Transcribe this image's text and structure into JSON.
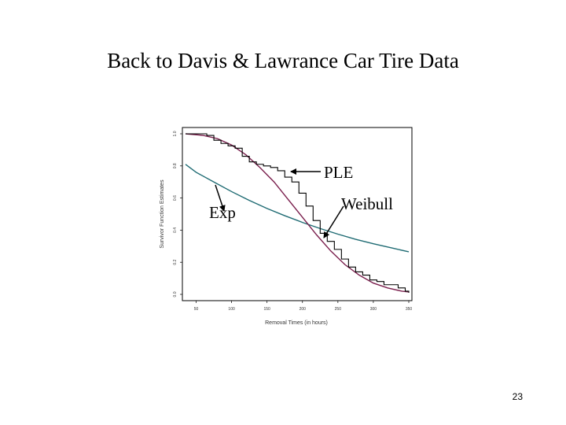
{
  "slide": {
    "title": "Back to Davis & Lawrance Car Tire Data",
    "page_number": "23"
  },
  "annotations": {
    "exp": "Exp",
    "ple": "PLE",
    "weibull": "Weibull"
  },
  "colors": {
    "exp_curve": "#1f6b73",
    "weibull_curve": "#7a1f4d",
    "ple_curve": "#000000",
    "frame": "#000000"
  },
  "chart_data": {
    "type": "line",
    "title": "",
    "xlabel": "Removal Times (in hours)",
    "ylabel": "Survivor Function Estimates",
    "xlim": [
      35,
      350
    ],
    "ylim": [
      0,
      1.0
    ],
    "x_ticks": [
      "50",
      "100",
      "150",
      "200",
      "250",
      "300",
      "350"
    ],
    "y_ticks": [
      "0.0",
      "0.2",
      "0.4",
      "0.6",
      "0.8",
      "1.0"
    ],
    "series": [
      {
        "name": "Exp",
        "x": [
          35,
          50,
          75,
          100,
          125,
          150,
          175,
          200,
          225,
          250,
          275,
          300,
          325,
          350
        ],
        "y": [
          0.81,
          0.76,
          0.7,
          0.64,
          0.585,
          0.535,
          0.49,
          0.448,
          0.41,
          0.375,
          0.343,
          0.315,
          0.29,
          0.265
        ]
      },
      {
        "name": "Weibull",
        "x": [
          35,
          60,
          80,
          100,
          120,
          140,
          160,
          180,
          200,
          220,
          240,
          260,
          280,
          300,
          320,
          340,
          350
        ],
        "y": [
          1.0,
          0.99,
          0.97,
          0.93,
          0.87,
          0.79,
          0.7,
          0.59,
          0.48,
          0.37,
          0.27,
          0.185,
          0.12,
          0.07,
          0.04,
          0.02,
          0.015
        ]
      },
      {
        "name": "PLE",
        "x": [
          35,
          65,
          75,
          85,
          95,
          105,
          115,
          125,
          135,
          145,
          155,
          165,
          175,
          185,
          195,
          205,
          215,
          225,
          235,
          245,
          255,
          265,
          275,
          285,
          295,
          305,
          315,
          325,
          335,
          345,
          350
        ],
        "y": [
          1.0,
          0.99,
          0.96,
          0.94,
          0.925,
          0.91,
          0.86,
          0.825,
          0.81,
          0.8,
          0.79,
          0.77,
          0.73,
          0.7,
          0.63,
          0.55,
          0.46,
          0.38,
          0.33,
          0.28,
          0.22,
          0.17,
          0.14,
          0.12,
          0.09,
          0.08,
          0.06,
          0.06,
          0.04,
          0.02,
          0.01
        ]
      }
    ]
  }
}
